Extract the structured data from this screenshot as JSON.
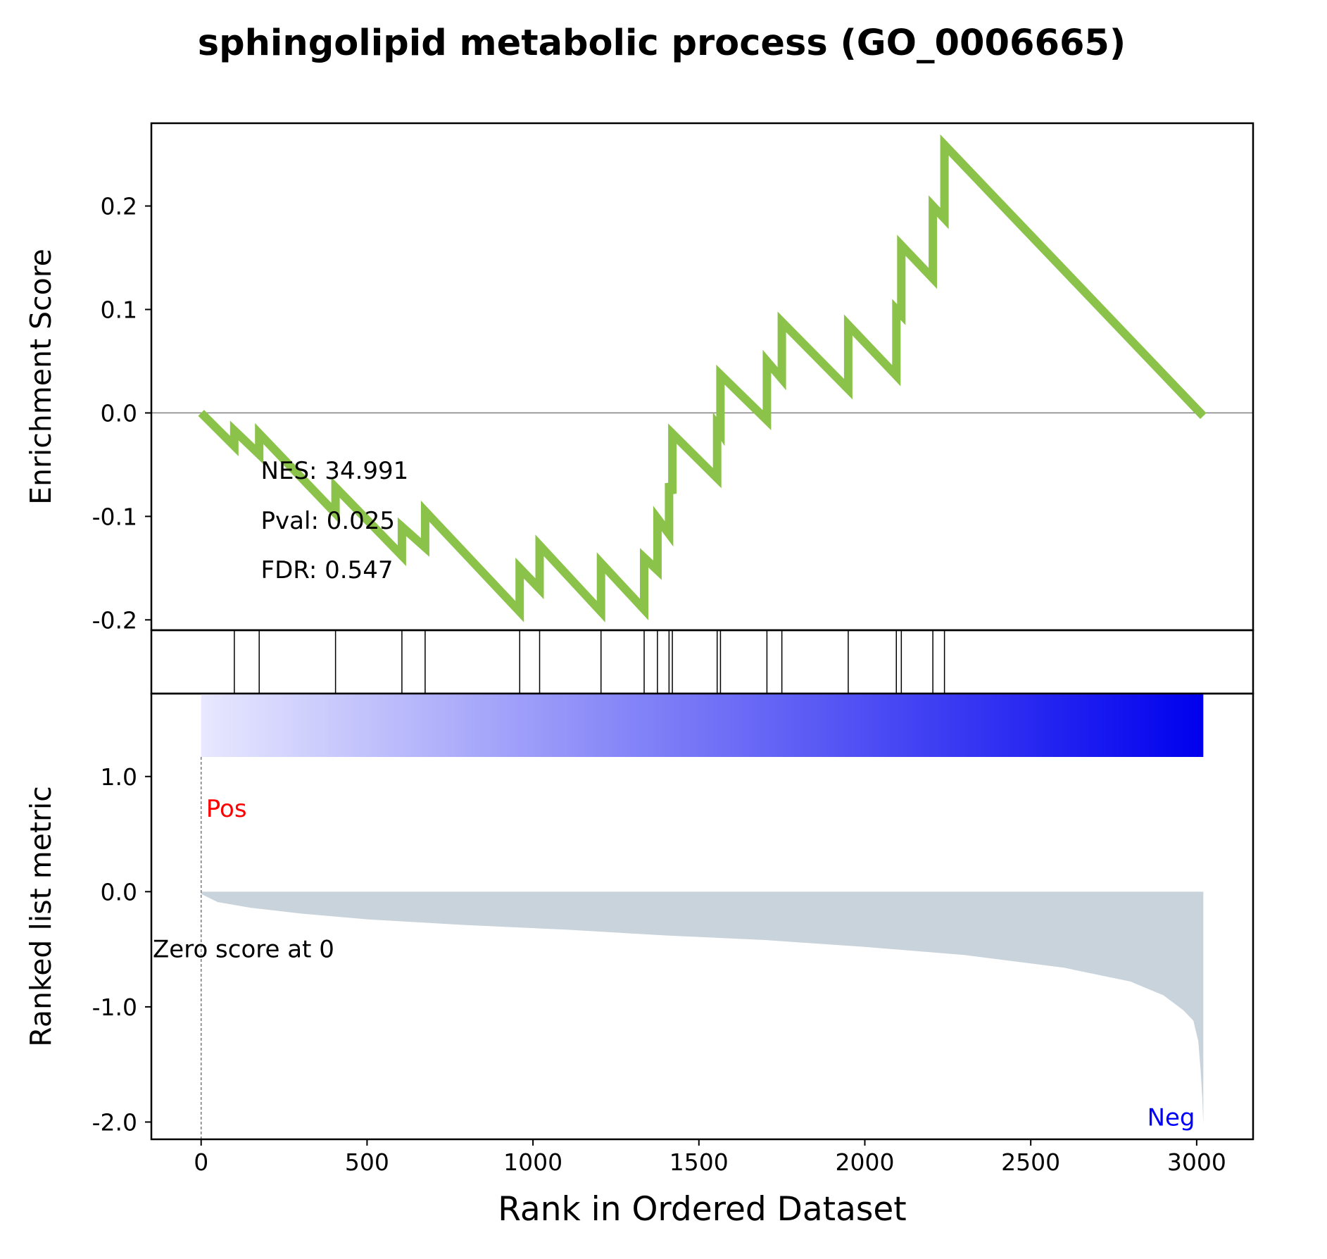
{
  "title": "sphingolipid metabolic process (GO_0006665)",
  "chart_data": [
    {
      "panel": "enrichment-score",
      "type": "line",
      "ylabel": "Enrichment Score",
      "ylim": [
        -0.21,
        0.28
      ],
      "yticks": [
        0.2,
        0.1,
        0.0,
        -0.1,
        -0.2
      ],
      "ytick_labels": [
        "0.2",
        "0.1",
        "0.0",
        "-0.1",
        "-0.2"
      ],
      "line_color": "#8bc34a",
      "zero_line": true,
      "x": [
        0,
        100,
        100,
        175,
        175,
        405,
        405,
        605,
        605,
        675,
        675,
        960,
        960,
        1020,
        1020,
        1205,
        1205,
        1335,
        1335,
        1375,
        1375,
        1410,
        1410,
        1420,
        1420,
        1555,
        1555,
        1565,
        1565,
        1705,
        1705,
        1750,
        1750,
        1950,
        1950,
        2095,
        2095,
        2110,
        2110,
        2205,
        2205,
        2240,
        2240,
        3020
      ],
      "y": [
        0.0,
        -0.032,
        -0.017,
        -0.04,
        -0.02,
        -0.097,
        -0.072,
        -0.138,
        -0.11,
        -0.13,
        -0.095,
        -0.192,
        -0.15,
        -0.17,
        -0.128,
        -0.192,
        -0.145,
        -0.19,
        -0.14,
        -0.152,
        -0.102,
        -0.117,
        -0.068,
        -0.078,
        -0.02,
        -0.063,
        -0.013,
        -0.018,
        0.037,
        -0.007,
        0.05,
        0.033,
        0.088,
        0.023,
        0.085,
        0.036,
        0.1,
        0.095,
        0.162,
        0.13,
        0.2,
        0.188,
        0.259,
        -0.003
      ],
      "annotations": {
        "nes": "NES: 34.991",
        "pval": "Pval: 0.025",
        "fdr": "FDR: 0.547"
      }
    },
    {
      "panel": "hit-positions",
      "type": "event-lines",
      "hits": [
        100,
        175,
        405,
        605,
        675,
        960,
        1020,
        1205,
        1335,
        1375,
        1410,
        1420,
        1555,
        1565,
        1705,
        1750,
        1950,
        2095,
        2110,
        2205,
        2240
      ]
    },
    {
      "panel": "ranked-list",
      "type": "area",
      "ylabel": "Ranked list metric",
      "xlabel": "Rank in Ordered Dataset",
      "xlim": [
        -150,
        3170
      ],
      "xticks": [
        0,
        500,
        1000,
        1500,
        2000,
        2500,
        3000
      ],
      "xtick_labels": [
        "0",
        "500",
        "1000",
        "1500",
        "2000",
        "2500",
        "3000"
      ],
      "ylim": [
        -2.15,
        1.72
      ],
      "yticks": [
        1.0,
        0.0,
        -1.0,
        -2.0
      ],
      "ytick_labels": [
        "1.0",
        "0.0",
        "-1.0",
        "-2.0"
      ],
      "fill_color": "#c8d3dc",
      "gradient": {
        "from": "#e8e8ff",
        "to": "#0000ee",
        "x": [
          0,
          3020
        ]
      },
      "x": [
        0,
        50,
        150,
        300,
        500,
        800,
        1100,
        1400,
        1700,
        2000,
        2300,
        2600,
        2800,
        2900,
        2960,
        2990,
        3005,
        3012,
        3017,
        3020
      ],
      "y": [
        -0.02,
        -0.09,
        -0.14,
        -0.19,
        -0.24,
        -0.29,
        -0.33,
        -0.38,
        -0.42,
        -0.48,
        -0.55,
        -0.66,
        -0.78,
        -0.9,
        -1.03,
        -1.12,
        -1.3,
        -1.55,
        -1.8,
        -2.02
      ],
      "pos_label": "Pos",
      "neg_label": "Neg",
      "zero_label": "Zero score at 0",
      "pos_color": "#ff0000",
      "neg_color": "#0000ff"
    }
  ]
}
